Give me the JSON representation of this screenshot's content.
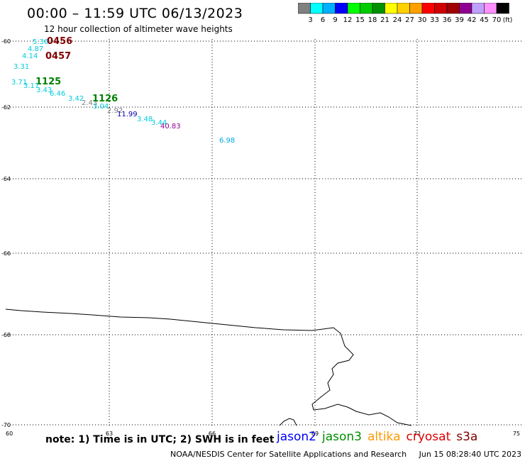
{
  "header": {
    "title": "00:00 – 11:59 UTC 06/13/2023",
    "subtitle": "12 hour collection of altimeter wave heights"
  },
  "colorbar": {
    "unit": "(ft)",
    "labels": [
      "3",
      "6",
      "9",
      "12",
      "15",
      "18",
      "21",
      "24",
      "27",
      "30",
      "33",
      "36",
      "39",
      "42",
      "45",
      "70"
    ],
    "colors": [
      "#808080",
      "#00ffff",
      "#00b0ff",
      "#0000ff",
      "#00ff00",
      "#00cc00",
      "#009000",
      "#ffff00",
      "#ffd000",
      "#ffa000",
      "#ff0000",
      "#d00000",
      "#a00000",
      "#900090",
      "#c0a0ff",
      "#ff90ff",
      "#000000"
    ]
  },
  "axes": {
    "lat_labels": [
      "-60",
      "-62",
      "-64",
      "-66",
      "-68",
      "-70"
    ],
    "lon_labels": [
      "60",
      "63",
      "66",
      "69",
      "72",
      "75"
    ]
  },
  "observations": [
    {
      "text": "5.36",
      "color": "#00ccdd"
    },
    {
      "text": "0456",
      "color": "#800000",
      "pass": true
    },
    {
      "text": "4.87",
      "color": "#00ccdd"
    },
    {
      "text": "4.14",
      "color": "#00ccdd"
    },
    {
      "text": "0457",
      "color": "#800000",
      "pass": true
    },
    {
      "text": "3.31",
      "color": "#00ccdd"
    },
    {
      "text": "3.71",
      "color": "#00ccdd"
    },
    {
      "text": "1125",
      "color": "#008000",
      "pass": true
    },
    {
      "text": "3.17",
      "color": "#00ccdd"
    },
    {
      "text": "3.43",
      "color": "#00ccdd"
    },
    {
      "text": "6.46",
      "color": "#00ccdd"
    },
    {
      "text": "3.42",
      "color": "#00ccdd"
    },
    {
      "text": "2.43",
      "color": "#808080"
    },
    {
      "text": "1126",
      "color": "#008000",
      "pass": true
    },
    {
      "text": "3.04",
      "color": "#00ccdd"
    },
    {
      "text": "2.92",
      "color": "#808080"
    },
    {
      "text": "11.99",
      "color": "#0000aa"
    },
    {
      "text": "3.48",
      "color": "#00ccdd"
    },
    {
      "text": "3.44",
      "color": "#00ccdd"
    },
    {
      "text": "40.83",
      "color": "#900090"
    },
    {
      "text": "6.98",
      "color": "#00aadd"
    }
  ],
  "footer": {
    "note": "note: 1) Time is in UTC; 2) SWH is in feet",
    "legend": [
      {
        "name": "jason2",
        "color": "#0000ff"
      },
      {
        "name": "jason3",
        "color": "#009000"
      },
      {
        "name": "altika",
        "color": "#ff9900"
      },
      {
        "name": "cryosat",
        "color": "#dd0000"
      },
      {
        "name": "s3a",
        "color": "#800000"
      }
    ],
    "credit": "NOAA/NESDIS Center for Satellite Applications and Research",
    "timestamp": "Jun 15 08:28:40 UTC 2023"
  }
}
